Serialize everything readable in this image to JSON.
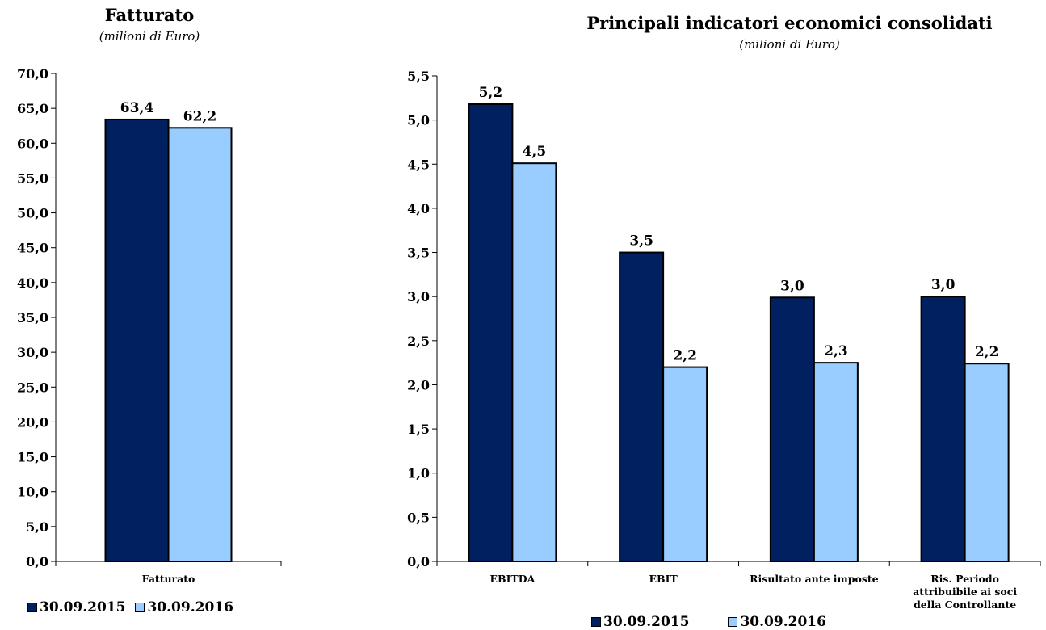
{
  "chart_data": [
    {
      "type": "bar",
      "title": "Fatturato",
      "subtitle": "(milioni di Euro)",
      "categories": [
        "Fatturato"
      ],
      "series": [
        {
          "name": "30.09.2015",
          "values": [
            63.4
          ],
          "labels": [
            "63,4"
          ],
          "color": "#002060"
        },
        {
          "name": "30.09.2016",
          "values": [
            62.2
          ],
          "labels": [
            "62,2"
          ],
          "color": "#99CCFF"
        }
      ],
      "ylim": [
        0,
        70
      ],
      "yticks": [
        "0,0",
        "5,0",
        "10,0",
        "15,0",
        "20,0",
        "25,0",
        "30,0",
        "35,0",
        "40,0",
        "45,0",
        "50,0",
        "55,0",
        "60,0",
        "65,0",
        "70,0"
      ],
      "ytick_values": [
        0,
        5,
        10,
        15,
        20,
        25,
        30,
        35,
        40,
        45,
        50,
        55,
        60,
        65,
        70
      ],
      "grid": false,
      "legend_position": "bottom-left"
    },
    {
      "type": "bar",
      "title": "Principali indicatori economici consolidati",
      "subtitle": "(milioni di Euro)",
      "categories": [
        "EBITDA",
        "EBIT",
        "Risultato ante imposte",
        "Ris. Periodo attribuibile ai soci della Controllante"
      ],
      "category_lines": [
        [
          "EBITDA"
        ],
        [
          "EBIT"
        ],
        [
          "Risultato ante imposte"
        ],
        [
          "Ris. Periodo",
          "attribuibile ai soci",
          "della Controllante"
        ]
      ],
      "series": [
        {
          "name": "30.09.2015",
          "values": [
            5.18,
            3.5,
            2.99,
            3.0
          ],
          "labels": [
            "5,2",
            "3,5",
            "3,0",
            "3,0"
          ],
          "color": "#002060"
        },
        {
          "name": "30.09.2016",
          "values": [
            4.51,
            2.2,
            2.25,
            2.24
          ],
          "labels": [
            "4,5",
            "2,2",
            "2,3",
            "2,2"
          ],
          "color": "#99CCFF"
        }
      ],
      "ylim": [
        0,
        5.5
      ],
      "yticks": [
        "0,0",
        "0,5",
        "1,0",
        "1,5",
        "2,0",
        "2,5",
        "3,0",
        "3,5",
        "4,0",
        "4,5",
        "5,0",
        "5,5"
      ],
      "ytick_values": [
        0,
        0.5,
        1,
        1.5,
        2,
        2.5,
        3,
        3.5,
        4,
        4.5,
        5,
        5.5
      ],
      "grid": false,
      "legend_position": "bottom-center"
    }
  ]
}
